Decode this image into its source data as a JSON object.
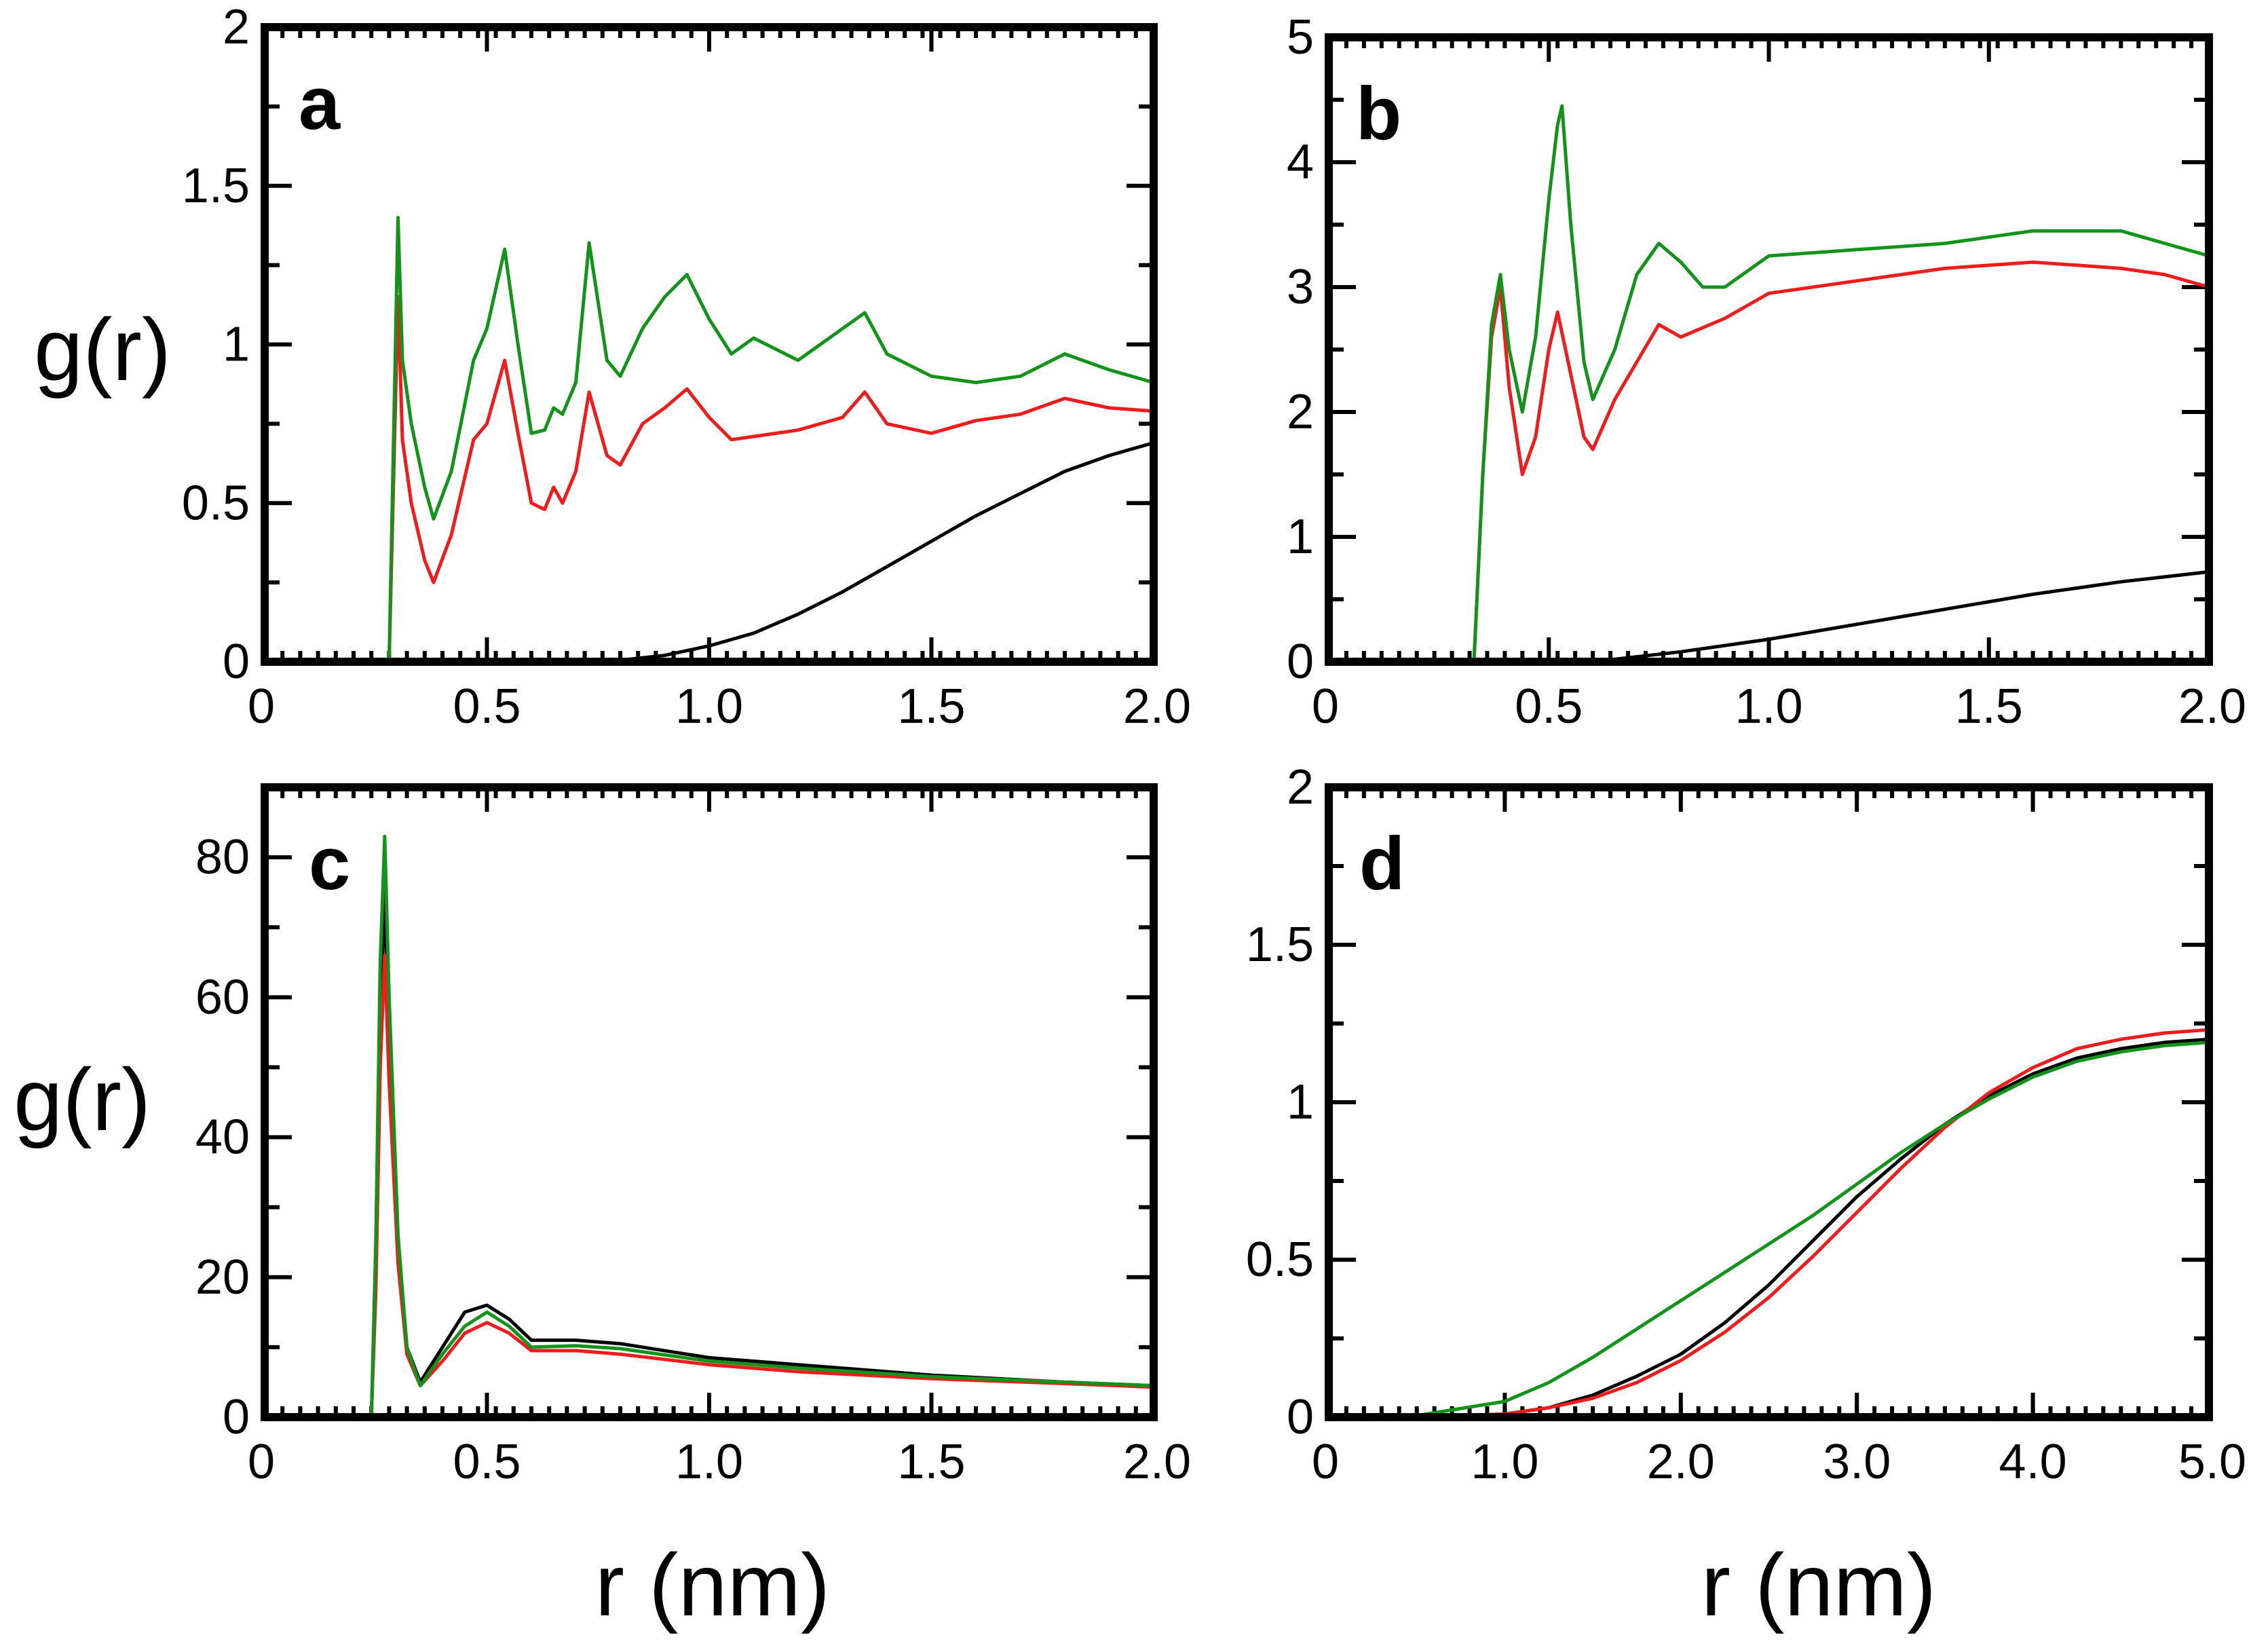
{
  "figure": {
    "x_axis_title": "r (nm)",
    "y_axis_title": "g(r)",
    "colors": {
      "black": "#000000",
      "red": "#ee1c1c",
      "green": "#12941a"
    }
  },
  "chart_data": [
    {
      "type": "line",
      "panel": "a",
      "xlim": [
        0,
        2.0
      ],
      "ylim": [
        0,
        2
      ],
      "xticks": [
        0,
        0.5,
        1.0,
        1.5,
        2.0
      ],
      "xtick_labels": [
        "0",
        "0.5",
        "1.0",
        "1.5",
        "2.0"
      ],
      "yticks": [
        0,
        0.5,
        1,
        1.5,
        2
      ],
      "ytick_labels": [
        "0",
        "0.5",
        "1",
        "1.5",
        "2"
      ],
      "xlabel": "",
      "ylabel": "g(r)",
      "series": [
        {
          "name": "black",
          "color": "#000000",
          "x": [
            0,
            0.7,
            0.8,
            0.9,
            1.0,
            1.1,
            1.2,
            1.3,
            1.4,
            1.5,
            1.6,
            1.7,
            1.8,
            1.9,
            2.0
          ],
          "y": [
            0,
            0,
            0.005,
            0.02,
            0.05,
            0.09,
            0.15,
            0.22,
            0.3,
            0.38,
            0.46,
            0.53,
            0.6,
            0.65,
            0.69
          ]
        },
        {
          "name": "red",
          "color": "#ee1c1c",
          "x": [
            0.28,
            0.3,
            0.31,
            0.33,
            0.36,
            0.38,
            0.42,
            0.47,
            0.5,
            0.54,
            0.57,
            0.6,
            0.63,
            0.65,
            0.67,
            0.7,
            0.73,
            0.77,
            0.8,
            0.85,
            0.9,
            0.95,
            1.0,
            1.05,
            1.1,
            1.2,
            1.3,
            1.35,
            1.4,
            1.5,
            1.6,
            1.7,
            1.8,
            1.9,
            2.0
          ],
          "y": [
            0,
            1.15,
            0.7,
            0.5,
            0.32,
            0.25,
            0.4,
            0.7,
            0.75,
            0.95,
            0.72,
            0.5,
            0.48,
            0.55,
            0.5,
            0.6,
            0.85,
            0.65,
            0.62,
            0.75,
            0.8,
            0.86,
            0.77,
            0.7,
            0.71,
            0.73,
            0.77,
            0.85,
            0.75,
            0.72,
            0.76,
            0.78,
            0.83,
            0.8,
            0.79
          ]
        },
        {
          "name": "green",
          "color": "#12941a",
          "x": [
            0.28,
            0.3,
            0.31,
            0.33,
            0.36,
            0.38,
            0.42,
            0.47,
            0.5,
            0.54,
            0.57,
            0.6,
            0.63,
            0.65,
            0.67,
            0.7,
            0.73,
            0.77,
            0.8,
            0.85,
            0.9,
            0.95,
            1.0,
            1.05,
            1.1,
            1.2,
            1.3,
            1.35,
            1.4,
            1.5,
            1.6,
            1.7,
            1.8,
            1.9,
            2.0
          ],
          "y": [
            0,
            1.4,
            0.95,
            0.75,
            0.55,
            0.45,
            0.6,
            0.95,
            1.05,
            1.3,
            1.0,
            0.72,
            0.73,
            0.8,
            0.78,
            0.88,
            1.32,
            0.95,
            0.9,
            1.05,
            1.15,
            1.22,
            1.08,
            0.97,
            1.02,
            0.95,
            1.05,
            1.1,
            0.97,
            0.9,
            0.88,
            0.9,
            0.97,
            0.92,
            0.88
          ]
        }
      ]
    },
    {
      "type": "line",
      "panel": "b",
      "xlim": [
        0,
        2.0
      ],
      "ylim": [
        0,
        5
      ],
      "xticks": [
        0,
        0.5,
        1.0,
        1.5,
        2.0
      ],
      "xtick_labels": [
        "0",
        "0.5",
        "1.0",
        "1.5",
        "2.0"
      ],
      "yticks": [
        0,
        1,
        2,
        3,
        4,
        5
      ],
      "ytick_labels": [
        "0",
        "1",
        "2",
        "3",
        "4",
        "5"
      ],
      "xlabel": "",
      "ylabel": "",
      "series": [
        {
          "name": "black",
          "color": "#000000",
          "x": [
            0,
            0.6,
            0.8,
            1.0,
            1.2,
            1.4,
            1.6,
            1.8,
            2.0
          ],
          "y": [
            0,
            0,
            0.08,
            0.18,
            0.3,
            0.42,
            0.54,
            0.64,
            0.72
          ]
        },
        {
          "name": "red",
          "color": "#ee1c1c",
          "x": [
            0.33,
            0.35,
            0.37,
            0.39,
            0.41,
            0.44,
            0.47,
            0.5,
            0.52,
            0.55,
            0.58,
            0.6,
            0.65,
            0.7,
            0.75,
            0.8,
            0.9,
            1.0,
            1.2,
            1.4,
            1.6,
            1.8,
            1.9,
            2.0
          ],
          "y": [
            0,
            1.5,
            2.6,
            3.0,
            2.2,
            1.5,
            1.8,
            2.5,
            2.8,
            2.3,
            1.8,
            1.7,
            2.1,
            2.4,
            2.7,
            2.6,
            2.75,
            2.95,
            3.05,
            3.15,
            3.2,
            3.15,
            3.1,
            3.0
          ]
        },
        {
          "name": "green",
          "color": "#12941a",
          "x": [
            0.33,
            0.35,
            0.37,
            0.39,
            0.41,
            0.44,
            0.47,
            0.5,
            0.52,
            0.53,
            0.55,
            0.58,
            0.6,
            0.65,
            0.7,
            0.75,
            0.8,
            0.85,
            0.9,
            1.0,
            1.2,
            1.4,
            1.6,
            1.8,
            1.9,
            2.0
          ],
          "y": [
            0,
            1.5,
            2.7,
            3.1,
            2.5,
            2.0,
            2.6,
            3.7,
            4.3,
            4.45,
            3.5,
            2.4,
            2.1,
            2.5,
            3.1,
            3.35,
            3.2,
            3.0,
            3.0,
            3.25,
            3.3,
            3.35,
            3.45,
            3.45,
            3.35,
            3.25
          ]
        }
      ]
    },
    {
      "type": "line",
      "panel": "c",
      "xlim": [
        0,
        2.0
      ],
      "ylim": [
        0,
        90
      ],
      "xticks": [
        0,
        0.5,
        1.0,
        1.5,
        2.0
      ],
      "xtick_labels": [
        "0",
        "0.5",
        "1.0",
        "1.5",
        "2.0"
      ],
      "yticks": [
        0,
        20,
        40,
        60,
        80
      ],
      "ytick_labels": [
        "0",
        "20",
        "40",
        "60",
        "80"
      ],
      "xlabel": "r (nm)",
      "ylabel": "g(r)",
      "series": [
        {
          "name": "black",
          "color": "#000000",
          "x": [
            0.24,
            0.25,
            0.26,
            0.27,
            0.28,
            0.3,
            0.32,
            0.35,
            0.4,
            0.45,
            0.5,
            0.55,
            0.6,
            0.7,
            0.8,
            1.0,
            1.2,
            1.5,
            1.8,
            2.0
          ],
          "y": [
            0,
            20,
            55,
            75,
            55,
            25,
            10,
            5,
            10,
            15,
            16,
            14,
            11,
            11,
            10.5,
            8.5,
            7.5,
            6,
            5,
            4.5
          ]
        },
        {
          "name": "red",
          "color": "#ee1c1c",
          "x": [
            0.24,
            0.25,
            0.26,
            0.27,
            0.28,
            0.3,
            0.32,
            0.35,
            0.4,
            0.45,
            0.5,
            0.55,
            0.6,
            0.7,
            0.8,
            1.0,
            1.2,
            1.5,
            1.8,
            2.0
          ],
          "y": [
            0,
            18,
            50,
            66,
            48,
            22,
            9,
            4.5,
            8,
            12,
            13.5,
            12,
            9.5,
            9.5,
            9,
            7.5,
            6.5,
            5.5,
            4.8,
            4.3
          ]
        },
        {
          "name": "green",
          "color": "#12941a",
          "x": [
            0.24,
            0.25,
            0.26,
            0.27,
            0.28,
            0.3,
            0.32,
            0.35,
            0.4,
            0.45,
            0.5,
            0.55,
            0.6,
            0.7,
            0.8,
            1.0,
            1.2,
            1.5,
            1.8,
            2.0
          ],
          "y": [
            0,
            25,
            65,
            83,
            60,
            26,
            10,
            4.5,
            9,
            13,
            15,
            13,
            10,
            10.2,
            9.8,
            8,
            7,
            5.8,
            5,
            4.5
          ]
        }
      ]
    },
    {
      "type": "line",
      "panel": "d",
      "xlim": [
        0,
        5.0
      ],
      "ylim": [
        0,
        2
      ],
      "xticks": [
        0,
        1.0,
        2.0,
        3.0,
        4.0,
        5.0
      ],
      "xtick_labels": [
        "0",
        "1.0",
        "2.0",
        "3.0",
        "4.0",
        "5.0"
      ],
      "yticks": [
        0,
        0.5,
        1,
        1.5,
        2
      ],
      "ytick_labels": [
        "0",
        "0.5",
        "1",
        "1.5",
        "2"
      ],
      "xlabel": "r (nm)",
      "ylabel": "",
      "series": [
        {
          "name": "black",
          "color": "#000000",
          "x": [
            0,
            0.5,
            1.0,
            1.25,
            1.5,
            1.75,
            2.0,
            2.25,
            2.5,
            2.75,
            3.0,
            3.25,
            3.5,
            3.75,
            4.0,
            4.25,
            4.5,
            4.75,
            5.0
          ],
          "y": [
            0,
            0,
            0.01,
            0.03,
            0.07,
            0.13,
            0.2,
            0.3,
            0.42,
            0.56,
            0.7,
            0.82,
            0.93,
            1.02,
            1.09,
            1.14,
            1.17,
            1.19,
            1.2
          ]
        },
        {
          "name": "red",
          "color": "#ee1c1c",
          "x": [
            0,
            0.5,
            1.0,
            1.25,
            1.5,
            1.75,
            2.0,
            2.25,
            2.5,
            2.75,
            3.0,
            3.25,
            3.5,
            3.75,
            4.0,
            4.25,
            4.5,
            4.75,
            5.0
          ],
          "y": [
            0,
            0,
            0.01,
            0.03,
            0.06,
            0.11,
            0.18,
            0.27,
            0.38,
            0.51,
            0.65,
            0.79,
            0.92,
            1.03,
            1.11,
            1.17,
            1.2,
            1.22,
            1.23
          ]
        },
        {
          "name": "green",
          "color": "#12941a",
          "x": [
            0,
            0.5,
            1.0,
            1.25,
            1.5,
            1.75,
            2.0,
            2.25,
            2.5,
            2.75,
            3.0,
            3.25,
            3.5,
            3.75,
            4.0,
            4.25,
            4.5,
            4.75,
            5.0
          ],
          "y": [
            0,
            0.005,
            0.05,
            0.11,
            0.19,
            0.28,
            0.37,
            0.46,
            0.55,
            0.64,
            0.74,
            0.84,
            0.93,
            1.01,
            1.08,
            1.13,
            1.16,
            1.18,
            1.19
          ]
        }
      ]
    }
  ]
}
